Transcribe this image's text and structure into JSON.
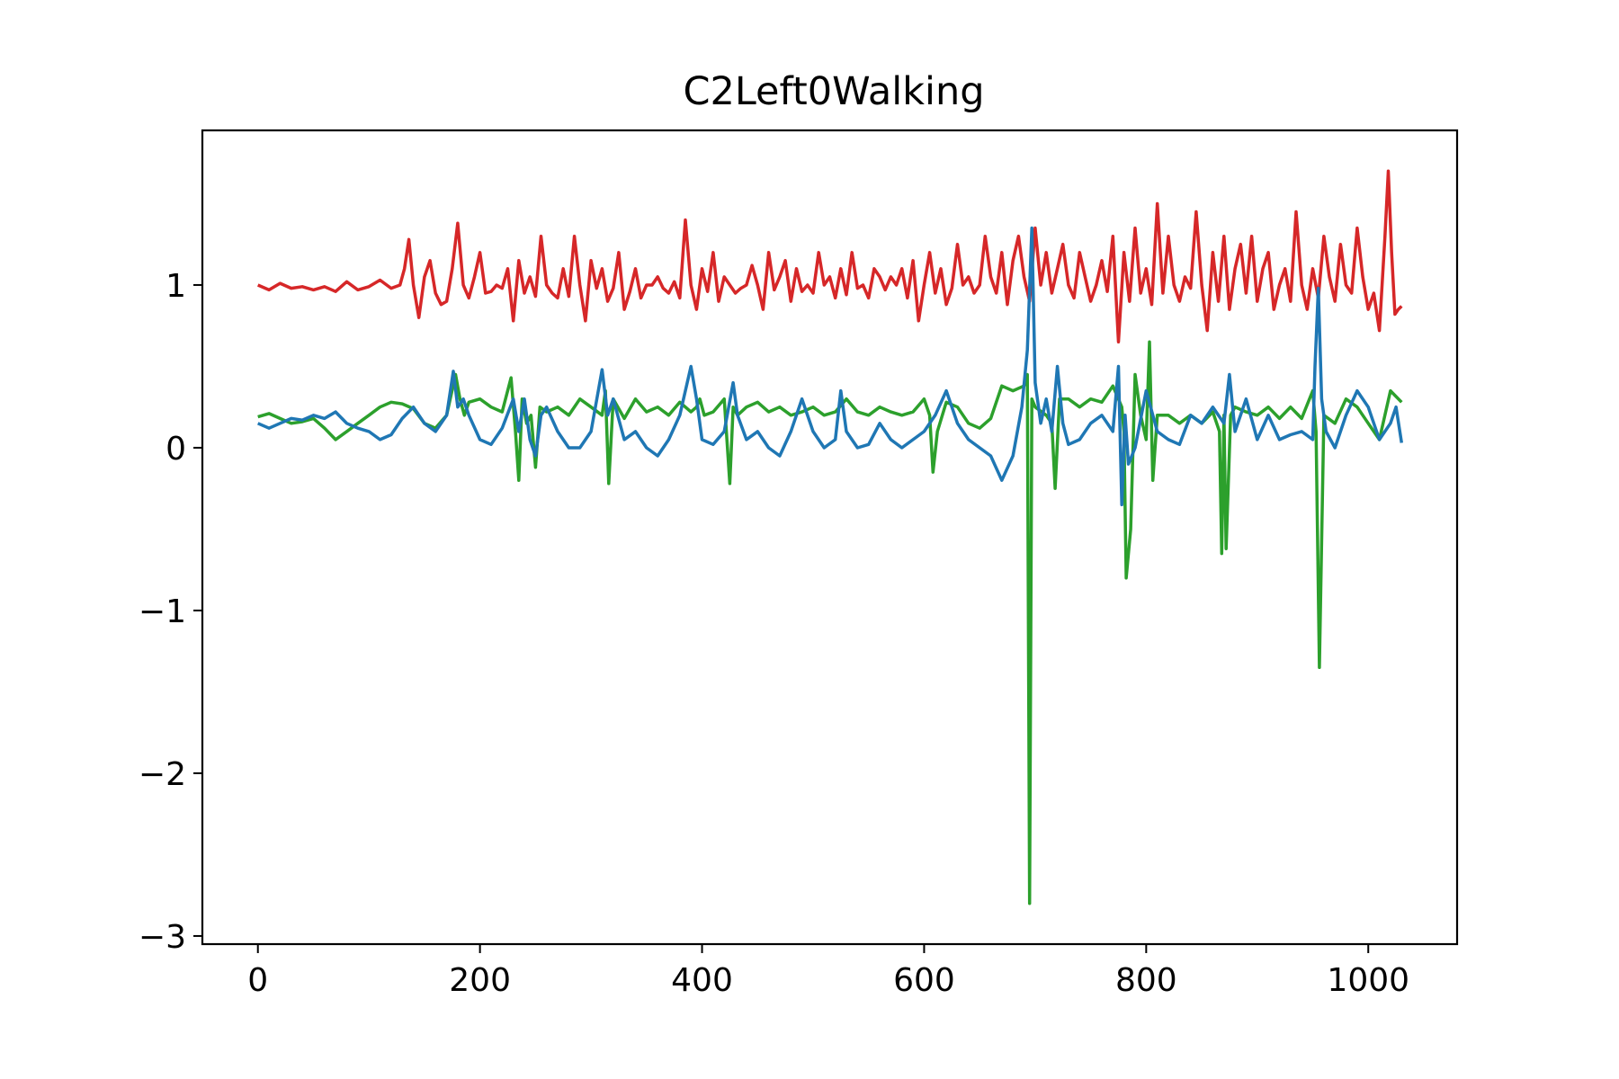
{
  "chart_data": {
    "type": "line",
    "title": "C2Left0Walking",
    "xlabel": "",
    "ylabel": "",
    "xlim": [
      -50,
      1080
    ],
    "ylim": [
      -3.05,
      1.95
    ],
    "grid": false,
    "x_ticks": [
      0,
      200,
      400,
      600,
      800,
      1000
    ],
    "x_tick_labels": [
      "0",
      "200",
      "400",
      "600",
      "800",
      "1000"
    ],
    "y_ticks": [
      -3,
      -2,
      -1,
      0,
      1
    ],
    "y_tick_labels": [
      "−3",
      "−2",
      "−1",
      "0",
      "1"
    ],
    "series": [
      {
        "color": "#d62728",
        "x": [
          0,
          10,
          20,
          30,
          40,
          50,
          60,
          70,
          80,
          90,
          100,
          110,
          120,
          128,
          132,
          136,
          140,
          145,
          150,
          155,
          160,
          165,
          170,
          175,
          180,
          185,
          190,
          195,
          200,
          205,
          210,
          215,
          220,
          225,
          230,
          235,
          240,
          245,
          250,
          255,
          260,
          265,
          270,
          275,
          280,
          285,
          290,
          295,
          300,
          305,
          310,
          315,
          320,
          325,
          330,
          335,
          340,
          345,
          350,
          355,
          360,
          365,
          370,
          375,
          380,
          385,
          390,
          395,
          400,
          405,
          410,
          415,
          420,
          425,
          430,
          435,
          440,
          445,
          450,
          455,
          460,
          465,
          470,
          475,
          480,
          485,
          490,
          495,
          500,
          505,
          510,
          515,
          520,
          525,
          530,
          535,
          540,
          545,
          550,
          555,
          560,
          565,
          570,
          575,
          580,
          585,
          590,
          595,
          600,
          605,
          610,
          615,
          620,
          625,
          630,
          635,
          640,
          645,
          650,
          655,
          660,
          665,
          670,
          675,
          680,
          685,
          690,
          695,
          700,
          705,
          710,
          715,
          720,
          725,
          730,
          735,
          740,
          745,
          750,
          755,
          760,
          765,
          770,
          775,
          780,
          785,
          790,
          795,
          800,
          805,
          810,
          815,
          820,
          825,
          830,
          835,
          840,
          845,
          850,
          855,
          860,
          865,
          870,
          875,
          880,
          885,
          890,
          895,
          900,
          905,
          910,
          915,
          920,
          925,
          930,
          935,
          940,
          945,
          950,
          955,
          960,
          965,
          970,
          975,
          980,
          985,
          990,
          995,
          1000,
          1005,
          1010,
          1015,
          1018,
          1021,
          1024,
          1027,
          1030
        ],
        "y": [
          1.0,
          0.97,
          1.01,
          0.98,
          0.99,
          0.97,
          0.99,
          0.96,
          1.02,
          0.97,
          0.99,
          1.03,
          0.98,
          1.0,
          1.1,
          1.28,
          1.0,
          0.8,
          1.05,
          1.15,
          0.95,
          0.88,
          0.9,
          1.1,
          1.38,
          1.0,
          0.92,
          1.05,
          1.2,
          0.95,
          0.96,
          1.0,
          0.98,
          1.1,
          0.78,
          1.15,
          0.95,
          1.05,
          0.93,
          1.3,
          1.0,
          0.95,
          0.92,
          1.1,
          0.93,
          1.3,
          1.0,
          0.78,
          1.15,
          0.98,
          1.1,
          0.9,
          0.98,
          1.2,
          0.85,
          0.96,
          1.1,
          0.92,
          1.0,
          1.0,
          1.05,
          0.98,
          0.95,
          1.02,
          0.92,
          1.4,
          1.0,
          0.85,
          1.1,
          0.96,
          1.2,
          0.9,
          1.05,
          1.0,
          0.95,
          0.98,
          1.0,
          1.12,
          1.0,
          0.85,
          1.2,
          0.97,
          1.05,
          1.15,
          0.9,
          1.1,
          0.96,
          1.0,
          0.95,
          1.2,
          1.0,
          1.05,
          0.92,
          1.1,
          0.94,
          1.2,
          0.98,
          1.0,
          0.92,
          1.1,
          1.05,
          0.97,
          1.05,
          1.0,
          1.1,
          0.92,
          1.15,
          0.78,
          1.0,
          1.2,
          0.95,
          1.1,
          0.88,
          0.98,
          1.25,
          1.0,
          1.05,
          0.95,
          1.0,
          1.3,
          1.05,
          0.95,
          1.2,
          0.88,
          1.15,
          1.3,
          1.05,
          0.9,
          1.35,
          1.0,
          1.2,
          0.95,
          1.1,
          1.25,
          1.0,
          0.92,
          1.2,
          1.05,
          0.9,
          1.0,
          1.15,
          0.96,
          1.3,
          0.65,
          1.2,
          0.9,
          1.35,
          0.95,
          1.1,
          0.88,
          1.5,
          0.95,
          1.3,
          1.0,
          0.9,
          1.05,
          0.98,
          1.45,
          1.0,
          0.72,
          1.2,
          0.9,
          1.3,
          0.85,
          1.1,
          1.25,
          0.95,
          1.3,
          0.9,
          1.1,
          1.2,
          0.85,
          1.0,
          1.1,
          0.9,
          1.45,
          1.0,
          0.85,
          1.1,
          0.92,
          1.3,
          1.05,
          0.9,
          1.25,
          1.0,
          0.95,
          1.35,
          1.05,
          0.85,
          0.95,
          0.72,
          1.3,
          1.7,
          1.2,
          0.82,
          0.85,
          0.87
        ]
      },
      {
        "color": "#2ca02c",
        "x": [
          0,
          10,
          20,
          30,
          40,
          50,
          60,
          70,
          80,
          90,
          100,
          110,
          120,
          130,
          140,
          150,
          160,
          170,
          178,
          182,
          186,
          190,
          200,
          210,
          220,
          228,
          232,
          235,
          238,
          242,
          246,
          250,
          254,
          260,
          270,
          280,
          290,
          300,
          310,
          313,
          316,
          320,
          330,
          340,
          350,
          360,
          370,
          380,
          390,
          395,
          398,
          402,
          410,
          420,
          425,
          428,
          432,
          440,
          450,
          460,
          470,
          480,
          490,
          500,
          510,
          520,
          530,
          540,
          550,
          560,
          570,
          580,
          590,
          600,
          605,
          608,
          612,
          620,
          630,
          640,
          650,
          660,
          670,
          680,
          690,
          693,
          695,
          697,
          700,
          710,
          715,
          718,
          722,
          730,
          740,
          750,
          760,
          770,
          778,
          780,
          782,
          786,
          790,
          795,
          800,
          803,
          806,
          810,
          820,
          830,
          840,
          850,
          860,
          866,
          868,
          870,
          872,
          876,
          880,
          890,
          900,
          910,
          920,
          930,
          940,
          950,
          953,
          956,
          960,
          970,
          980,
          990,
          1000,
          1010,
          1020,
          1030
        ],
        "y": [
          0.19,
          0.21,
          0.18,
          0.15,
          0.16,
          0.18,
          0.12,
          0.05,
          0.1,
          0.15,
          0.2,
          0.25,
          0.28,
          0.27,
          0.24,
          0.15,
          0.12,
          0.2,
          0.45,
          0.3,
          0.2,
          0.28,
          0.3,
          0.25,
          0.22,
          0.43,
          0.1,
          -0.2,
          0.3,
          0.15,
          0.2,
          -0.12,
          0.25,
          0.22,
          0.25,
          0.2,
          0.3,
          0.25,
          0.2,
          0.35,
          -0.22,
          0.3,
          0.18,
          0.3,
          0.22,
          0.25,
          0.2,
          0.28,
          0.22,
          0.25,
          0.3,
          0.2,
          0.22,
          0.3,
          -0.22,
          0.25,
          0.2,
          0.25,
          0.28,
          0.22,
          0.25,
          0.2,
          0.22,
          0.25,
          0.2,
          0.22,
          0.3,
          0.22,
          0.2,
          0.25,
          0.22,
          0.2,
          0.22,
          0.3,
          0.2,
          -0.15,
          0.1,
          0.28,
          0.25,
          0.15,
          0.12,
          0.18,
          0.38,
          0.35,
          0.38,
          0.45,
          -2.8,
          0.3,
          0.25,
          0.2,
          0.15,
          -0.25,
          0.3,
          0.3,
          0.25,
          0.3,
          0.28,
          0.38,
          0.25,
          0.1,
          -0.8,
          -0.5,
          0.45,
          0.2,
          0.05,
          0.65,
          -0.2,
          0.2,
          0.2,
          0.15,
          0.2,
          0.15,
          0.22,
          0.1,
          -0.65,
          0.2,
          -0.62,
          0.2,
          0.25,
          0.22,
          0.2,
          0.25,
          0.18,
          0.25,
          0.18,
          0.35,
          0.1,
          -1.35,
          0.2,
          0.15,
          0.3,
          0.25,
          0.15,
          0.05,
          0.35,
          0.28
        ]
      },
      {
        "color": "#1f77b4",
        "x": [
          0,
          10,
          20,
          30,
          40,
          50,
          60,
          70,
          80,
          90,
          100,
          110,
          120,
          130,
          140,
          150,
          160,
          170,
          176,
          180,
          185,
          190,
          200,
          210,
          220,
          230,
          235,
          240,
          245,
          250,
          255,
          260,
          270,
          280,
          290,
          300,
          310,
          315,
          320,
          330,
          340,
          350,
          360,
          370,
          380,
          390,
          395,
          400,
          410,
          420,
          428,
          432,
          440,
          450,
          460,
          470,
          480,
          490,
          500,
          510,
          520,
          525,
          530,
          540,
          550,
          560,
          570,
          580,
          590,
          600,
          610,
          620,
          630,
          640,
          650,
          660,
          670,
          680,
          688,
          693,
          697,
          700,
          705,
          710,
          715,
          720,
          725,
          730,
          740,
          750,
          760,
          770,
          775,
          778,
          781,
          784,
          790,
          800,
          810,
          820,
          830,
          840,
          850,
          860,
          870,
          875,
          880,
          890,
          900,
          910,
          920,
          930,
          940,
          950,
          952,
          955,
          958,
          962,
          970,
          980,
          990,
          1000,
          1010,
          1020,
          1025,
          1030
        ],
        "y": [
          0.15,
          0.12,
          0.15,
          0.18,
          0.17,
          0.2,
          0.18,
          0.22,
          0.15,
          0.12,
          0.1,
          0.05,
          0.08,
          0.18,
          0.25,
          0.15,
          0.1,
          0.2,
          0.47,
          0.25,
          0.3,
          0.2,
          0.05,
          0.02,
          0.12,
          0.3,
          0.1,
          0.3,
          0.05,
          -0.05,
          0.2,
          0.25,
          0.1,
          0.0,
          0.0,
          0.1,
          0.48,
          0.2,
          0.3,
          0.05,
          0.1,
          0.0,
          -0.05,
          0.05,
          0.2,
          0.5,
          0.3,
          0.05,
          0.02,
          0.1,
          0.4,
          0.2,
          0.05,
          0.1,
          0.0,
          -0.05,
          0.1,
          0.3,
          0.1,
          0.0,
          0.05,
          0.35,
          0.1,
          0.0,
          0.02,
          0.15,
          0.05,
          0.0,
          0.05,
          0.1,
          0.2,
          0.35,
          0.15,
          0.05,
          0.0,
          -0.05,
          -0.2,
          -0.05,
          0.25,
          0.6,
          1.35,
          0.4,
          0.15,
          0.3,
          0.1,
          0.5,
          0.15,
          0.02,
          0.05,
          0.15,
          0.2,
          0.1,
          0.5,
          -0.35,
          0.2,
          -0.1,
          0.0,
          0.35,
          0.1,
          0.05,
          0.02,
          0.2,
          0.15,
          0.25,
          0.15,
          0.45,
          0.1,
          0.3,
          0.05,
          0.2,
          0.05,
          0.08,
          0.1,
          0.05,
          0.5,
          0.98,
          0.3,
          0.1,
          0.0,
          0.2,
          0.35,
          0.25,
          0.05,
          0.15,
          0.25,
          0.03
        ]
      }
    ]
  }
}
